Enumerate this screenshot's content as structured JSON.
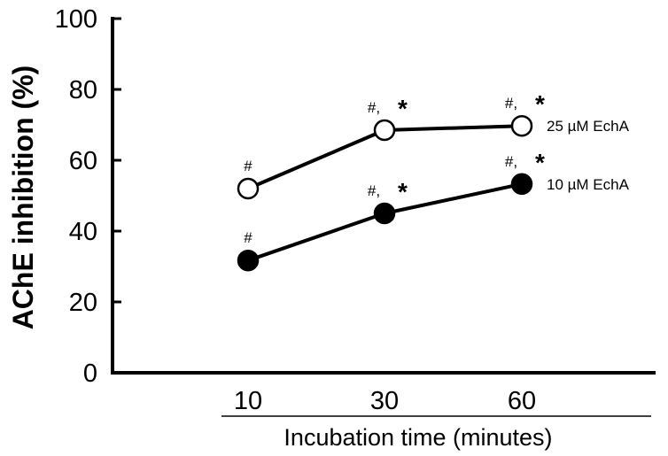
{
  "chart_data": {
    "type": "line",
    "title": "",
    "xlabel": "Incubation time (minutes)",
    "ylabel": "AChE inhibition (%)",
    "categories": [
      "10",
      "30",
      "60"
    ],
    "ylim": [
      0,
      100
    ],
    "yticks": [
      0,
      20,
      40,
      60,
      80,
      100
    ],
    "grid": false,
    "series": [
      {
        "name": "25 µM EchA",
        "marker": "open-circle",
        "color": "#000000",
        "values": [
          52,
          68.5,
          69.7
        ],
        "annotations": [
          "#",
          "#, *",
          "#, *"
        ]
      },
      {
        "name": "10 µM EchA",
        "marker": "filled-circle",
        "color": "#000000",
        "values": [
          31.7,
          45,
          53.3
        ],
        "annotations": [
          "#",
          "#, *",
          "#, *"
        ]
      }
    ]
  }
}
